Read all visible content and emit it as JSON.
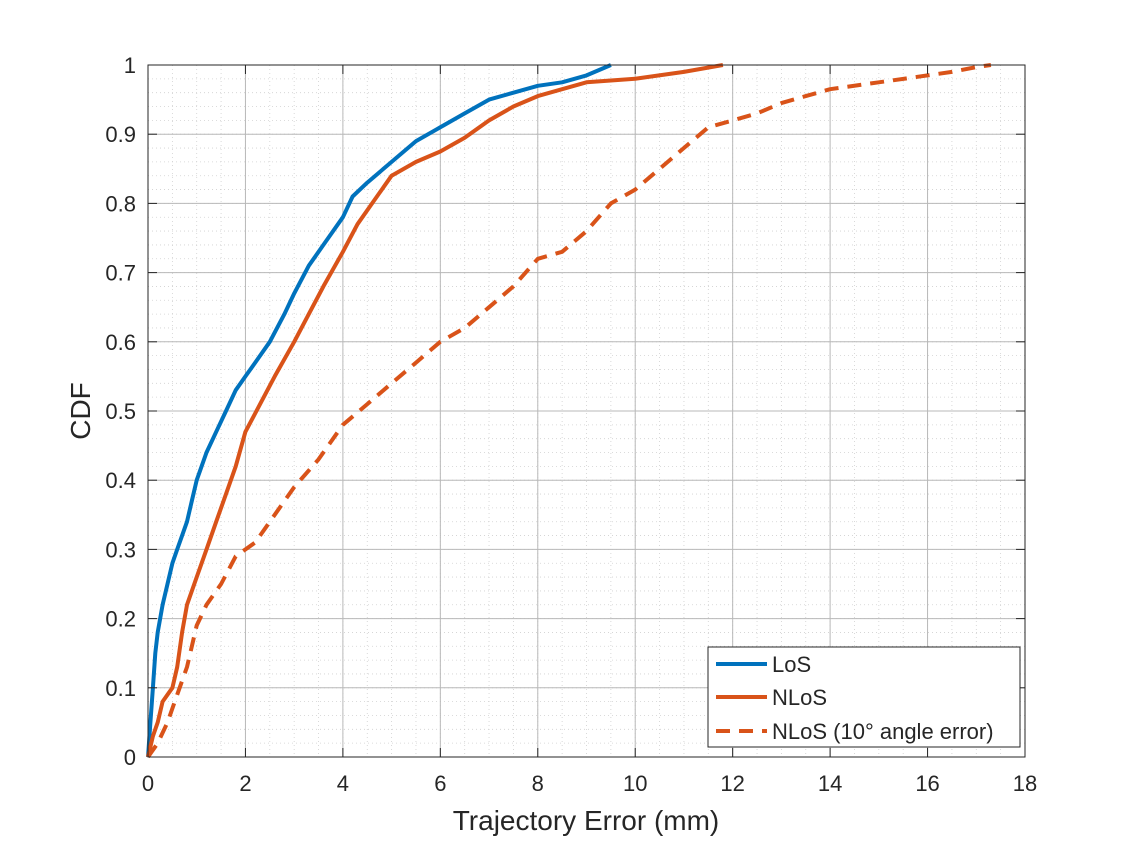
{
  "chart_data": {
    "type": "line",
    "title": "",
    "xlabel": "Trajectory Error (mm)",
    "ylabel": "CDF",
    "xlim": [
      0,
      18
    ],
    "ylim": [
      0,
      1
    ],
    "x_ticks": [
      0,
      2,
      4,
      6,
      8,
      10,
      12,
      14,
      16,
      18
    ],
    "y_ticks": [
      0,
      0.1,
      0.2,
      0.3,
      0.4,
      0.5,
      0.6,
      0.7,
      0.8,
      0.9,
      1
    ],
    "x_tick_labels": [
      "0",
      "2",
      "4",
      "6",
      "8",
      "10",
      "12",
      "14",
      "16",
      "18"
    ],
    "y_tick_labels": [
      "0",
      "0.1",
      "0.2",
      "0.3",
      "0.4",
      "0.5",
      "0.6",
      "0.7",
      "0.8",
      "0.9",
      "1"
    ],
    "grid": true,
    "minor_grid": true,
    "legend_position": "bottom-right",
    "series": [
      {
        "name": "LoS",
        "color": "#0072BD",
        "style": "solid",
        "x": [
          0,
          0.05,
          0.1,
          0.15,
          0.2,
          0.3,
          0.4,
          0.5,
          0.6,
          0.7,
          0.8,
          0.9,
          1.0,
          1.2,
          1.4,
          1.6,
          1.8,
          2.0,
          2.2,
          2.5,
          2.8,
          3.0,
          3.3,
          3.6,
          4.0,
          4.2,
          4.5,
          5.0,
          5.5,
          6.0,
          6.5,
          7.0,
          7.5,
          8.0,
          8.5,
          9.0,
          9.5
        ],
        "y": [
          0,
          0.05,
          0.1,
          0.15,
          0.18,
          0.22,
          0.25,
          0.28,
          0.3,
          0.32,
          0.34,
          0.37,
          0.4,
          0.44,
          0.47,
          0.5,
          0.53,
          0.55,
          0.57,
          0.6,
          0.64,
          0.67,
          0.71,
          0.74,
          0.78,
          0.81,
          0.83,
          0.86,
          0.89,
          0.91,
          0.93,
          0.95,
          0.96,
          0.97,
          0.975,
          0.985,
          1.0
        ]
      },
      {
        "name": "NLoS",
        "color": "#D95319",
        "style": "solid",
        "x": [
          0,
          0.1,
          0.2,
          0.3,
          0.4,
          0.5,
          0.6,
          0.7,
          0.8,
          1.0,
          1.2,
          1.4,
          1.6,
          1.8,
          2.0,
          2.3,
          2.6,
          3.0,
          3.3,
          3.6,
          4.0,
          4.3,
          4.6,
          5.0,
          5.5,
          6.0,
          6.5,
          7.0,
          7.5,
          8.0,
          8.5,
          9.0,
          10.0,
          11.0,
          11.8
        ],
        "y": [
          0,
          0.03,
          0.05,
          0.08,
          0.09,
          0.1,
          0.13,
          0.18,
          0.22,
          0.26,
          0.3,
          0.34,
          0.38,
          0.42,
          0.47,
          0.51,
          0.55,
          0.6,
          0.64,
          0.68,
          0.73,
          0.77,
          0.8,
          0.84,
          0.86,
          0.875,
          0.895,
          0.92,
          0.94,
          0.955,
          0.965,
          0.975,
          0.98,
          0.99,
          1.0
        ]
      },
      {
        "name": "NLoS (10° angle error)",
        "color": "#D95319",
        "style": "dashed",
        "x": [
          0,
          0.2,
          0.4,
          0.6,
          0.8,
          1.0,
          1.2,
          1.5,
          1.8,
          2.2,
          2.6,
          3.0,
          3.5,
          4.0,
          4.5,
          5.0,
          5.5,
          6.0,
          6.5,
          7.0,
          7.5,
          8.0,
          8.5,
          9.0,
          9.5,
          10.0,
          10.5,
          11.0,
          11.5,
          12.0,
          12.5,
          13.0,
          13.5,
          14.0,
          15.0,
          16.0,
          16.5,
          17.0,
          17.3
        ],
        "y": [
          0,
          0.02,
          0.05,
          0.09,
          0.13,
          0.19,
          0.22,
          0.25,
          0.29,
          0.31,
          0.35,
          0.39,
          0.43,
          0.48,
          0.51,
          0.54,
          0.57,
          0.6,
          0.62,
          0.65,
          0.68,
          0.72,
          0.73,
          0.76,
          0.8,
          0.82,
          0.85,
          0.88,
          0.91,
          0.92,
          0.93,
          0.945,
          0.955,
          0.965,
          0.975,
          0.985,
          0.99,
          0.997,
          1.0
        ]
      }
    ]
  }
}
